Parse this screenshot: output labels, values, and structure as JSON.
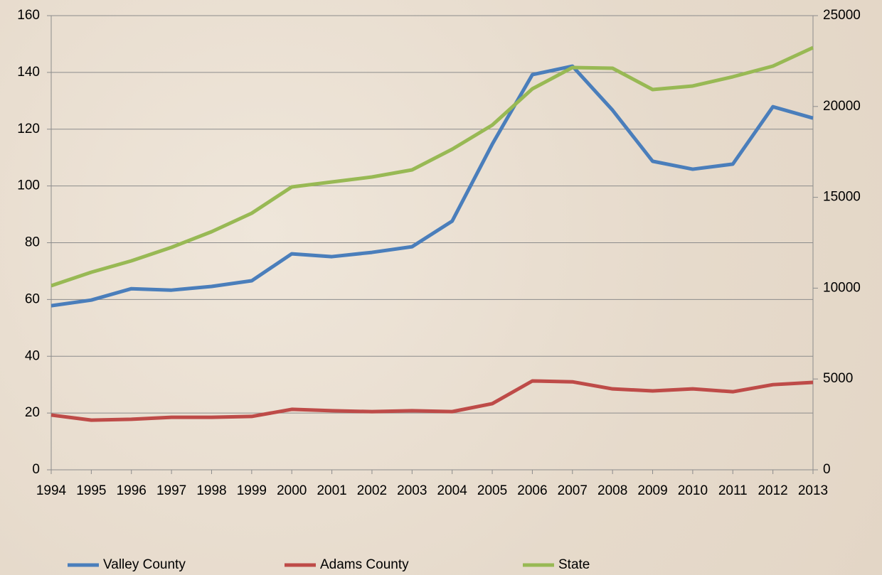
{
  "chart_data": {
    "type": "line",
    "categories": [
      "1994",
      "1995",
      "1996",
      "1997",
      "1998",
      "1999",
      "2000",
      "2001",
      "2002",
      "2003",
      "2004",
      "2005",
      "2006",
      "2007",
      "2008",
      "2009",
      "2010",
      "2011",
      "2012",
      "2013"
    ],
    "series": [
      {
        "name": "Valley County",
        "color": "#4a7ebb",
        "values": [
          57.8,
          59.8,
          63.8,
          63.3,
          64.6,
          66.6,
          76.1,
          75.1,
          76.6,
          78.6,
          87.6,
          114.7,
          139.2,
          142.2,
          126.7,
          108.7,
          105.9,
          107.7,
          127.9,
          123.9
        ]
      },
      {
        "name": "Adams County",
        "color": "#be4b48",
        "values": [
          19.3,
          17.5,
          17.8,
          18.5,
          18.5,
          18.8,
          21.3,
          20.8,
          20.5,
          20.8,
          20.5,
          23.3,
          31.3,
          31.0,
          28.5,
          27.8,
          28.5,
          27.5,
          30.0,
          30.8
        ]
      },
      {
        "name": "State",
        "color": "#98b954",
        "axis": "y2",
        "values": [
          10133,
          10876,
          11502,
          12246,
          13106,
          14124,
          15571,
          15845,
          16119,
          16510,
          17645,
          18975,
          20970,
          22144,
          22105,
          20931,
          21127,
          21635,
          22222,
          23239
        ]
      }
    ],
    "ylim": [
      0,
      160
    ],
    "yticks": [
      0,
      20,
      40,
      60,
      80,
      100,
      120,
      140,
      160
    ],
    "y2lim": [
      0,
      25000
    ],
    "y2ticks": [
      0,
      5000,
      10000,
      15000,
      20000,
      25000
    ],
    "grid": true,
    "legend": "bottom"
  }
}
